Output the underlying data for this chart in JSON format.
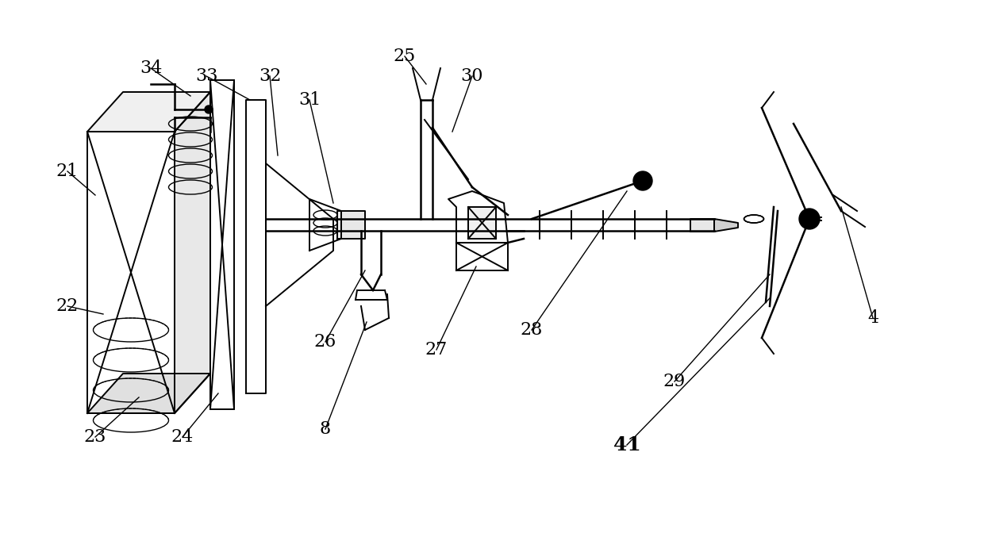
{
  "background_color": "#ffffff",
  "fig_width": 12.4,
  "fig_height": 6.96,
  "line_color": "#000000",
  "line_width": 1.4,
  "font_size": 16
}
